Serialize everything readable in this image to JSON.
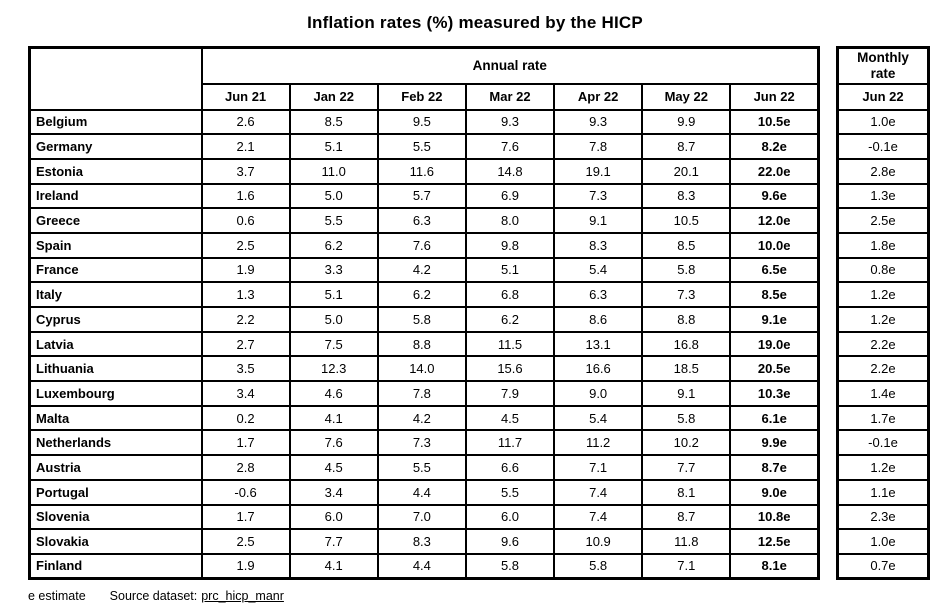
{
  "title": "Inflation rates (%) measured by the HICP",
  "chart_data": {
    "type": "table",
    "title": "Inflation rates (%) measured by the HICP",
    "annual_group_label": "Annual rate",
    "monthly_group_label": "Monthly rate",
    "annual_columns": [
      "Jun 21",
      "Jan 22",
      "Feb 22",
      "Mar 22",
      "Apr 22",
      "May 22",
      "Jun 22"
    ],
    "monthly_column": "Jun 22",
    "rows": [
      {
        "country": "Belgium",
        "annual": [
          "2.6",
          "8.5",
          "9.5",
          "9.3",
          "9.3",
          "9.9",
          "10.5e"
        ],
        "monthly": "1.0e"
      },
      {
        "country": "Germany",
        "annual": [
          "2.1",
          "5.1",
          "5.5",
          "7.6",
          "7.8",
          "8.7",
          "8.2e"
        ],
        "monthly": "-0.1e"
      },
      {
        "country": "Estonia",
        "annual": [
          "3.7",
          "11.0",
          "11.6",
          "14.8",
          "19.1",
          "20.1",
          "22.0e"
        ],
        "monthly": "2.8e"
      },
      {
        "country": "Ireland",
        "annual": [
          "1.6",
          "5.0",
          "5.7",
          "6.9",
          "7.3",
          "8.3",
          "9.6e"
        ],
        "monthly": "1.3e"
      },
      {
        "country": "Greece",
        "annual": [
          "0.6",
          "5.5",
          "6.3",
          "8.0",
          "9.1",
          "10.5",
          "12.0e"
        ],
        "monthly": "2.5e"
      },
      {
        "country": "Spain",
        "annual": [
          "2.5",
          "6.2",
          "7.6",
          "9.8",
          "8.3",
          "8.5",
          "10.0e"
        ],
        "monthly": "1.8e"
      },
      {
        "country": "France",
        "annual": [
          "1.9",
          "3.3",
          "4.2",
          "5.1",
          "5.4",
          "5.8",
          "6.5e"
        ],
        "monthly": "0.8e"
      },
      {
        "country": "Italy",
        "annual": [
          "1.3",
          "5.1",
          "6.2",
          "6.8",
          "6.3",
          "7.3",
          "8.5e"
        ],
        "monthly": "1.2e"
      },
      {
        "country": "Cyprus",
        "annual": [
          "2.2",
          "5.0",
          "5.8",
          "6.2",
          "8.6",
          "8.8",
          "9.1e"
        ],
        "monthly": "1.2e"
      },
      {
        "country": "Latvia",
        "annual": [
          "2.7",
          "7.5",
          "8.8",
          "11.5",
          "13.1",
          "16.8",
          "19.0e"
        ],
        "monthly": "2.2e"
      },
      {
        "country": "Lithuania",
        "annual": [
          "3.5",
          "12.3",
          "14.0",
          "15.6",
          "16.6",
          "18.5",
          "20.5e"
        ],
        "monthly": "2.2e"
      },
      {
        "country": "Luxembourg",
        "annual": [
          "3.4",
          "4.6",
          "7.8",
          "7.9",
          "9.0",
          "9.1",
          "10.3e"
        ],
        "monthly": "1.4e"
      },
      {
        "country": "Malta",
        "annual": [
          "0.2",
          "4.1",
          "4.2",
          "4.5",
          "5.4",
          "5.8",
          "6.1e"
        ],
        "monthly": "1.7e"
      },
      {
        "country": "Netherlands",
        "annual": [
          "1.7",
          "7.6",
          "7.3",
          "11.7",
          "11.2",
          "10.2",
          "9.9e"
        ],
        "monthly": "-0.1e"
      },
      {
        "country": "Austria",
        "annual": [
          "2.8",
          "4.5",
          "5.5",
          "6.6",
          "7.1",
          "7.7",
          "8.7e"
        ],
        "monthly": "1.2e"
      },
      {
        "country": "Portugal",
        "annual": [
          "-0.6",
          "3.4",
          "4.4",
          "5.5",
          "7.4",
          "8.1",
          "9.0e"
        ],
        "monthly": "1.1e"
      },
      {
        "country": "Slovenia",
        "annual": [
          "1.7",
          "6.0",
          "7.0",
          "6.0",
          "7.4",
          "8.7",
          "10.8e"
        ],
        "monthly": "2.3e"
      },
      {
        "country": "Slovakia",
        "annual": [
          "2.5",
          "7.7",
          "8.3",
          "9.6",
          "10.9",
          "11.8",
          "12.5e"
        ],
        "monthly": "1.0e"
      },
      {
        "country": "Finland",
        "annual": [
          "1.9",
          "4.1",
          "4.4",
          "5.8",
          "5.8",
          "7.1",
          "8.1e"
        ],
        "monthly": "0.7e"
      }
    ]
  },
  "footer": {
    "estimate_note": "e estimate",
    "source_label": "Source dataset:",
    "source_link": "prc_hicp_manr"
  }
}
